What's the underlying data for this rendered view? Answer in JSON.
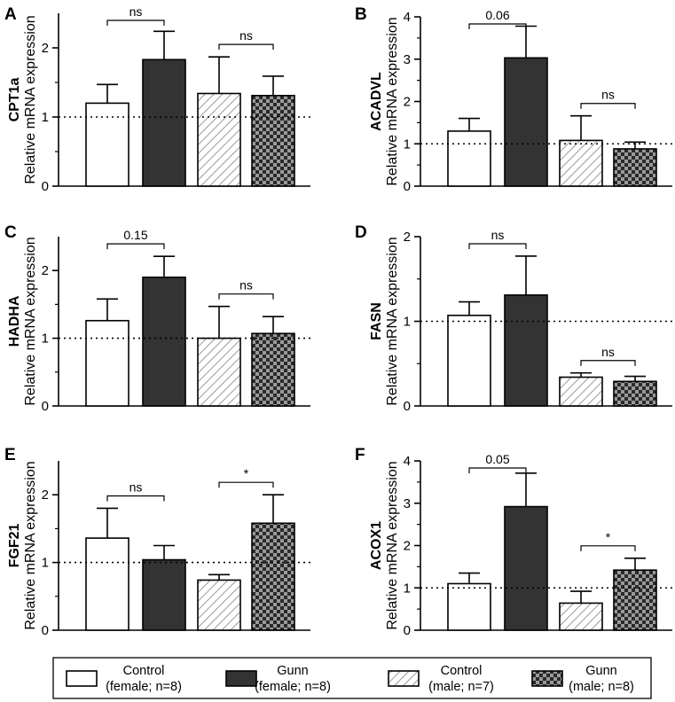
{
  "colors": {
    "control_female": "#ffffff",
    "gunn_female": "#333333",
    "control_male_hatch": "#9a9a9a",
    "gunn_male_check_dark": "#2a2a2a",
    "gunn_male_check_light": "#9a9a9a",
    "axis": "#000000"
  },
  "legend": {
    "items": [
      {
        "line1": "Control",
        "line2": "(female; n=8)",
        "pattern": "white"
      },
      {
        "line1": "Gunn",
        "line2": "(female; n=8)",
        "pattern": "dark"
      },
      {
        "line1": "Control",
        "line2": "(male; n=7)",
        "pattern": "hatch"
      },
      {
        "line1": "Gunn",
        "line2": "(male; n=8)",
        "pattern": "check"
      }
    ]
  },
  "chart_data": [
    {
      "panel": "A",
      "type": "bar",
      "gene": "CPT1a",
      "ylabel": "Relative  mRNA expression",
      "categories": [
        "Control (female; n=8)",
        "Gunn (female; n=8)",
        "Control (male; n=7)",
        "Gunn (male; n=8)"
      ],
      "values": [
        1.2,
        1.83,
        1.34,
        1.31
      ],
      "errors": [
        0.27,
        0.41,
        0.53,
        0.28
      ],
      "ylim": [
        0,
        2.5
      ],
      "yticks": [
        0,
        1,
        2
      ],
      "reference_line": 1,
      "comparisons": [
        {
          "from": 0,
          "to": 1,
          "label": "ns"
        },
        {
          "from": 2,
          "to": 3,
          "label": "ns"
        }
      ]
    },
    {
      "panel": "B",
      "type": "bar",
      "gene": "ACADVL",
      "ylabel": "Relative  mRNA expression",
      "categories": [
        "Control (female; n=8)",
        "Gunn (female; n=8)",
        "Control (male; n=7)",
        "Gunn (male; n=8)"
      ],
      "values": [
        1.3,
        3.03,
        1.08,
        0.88
      ],
      "errors": [
        0.3,
        0.75,
        0.58,
        0.16
      ],
      "ylim": [
        0,
        4
      ],
      "yticks": [
        0,
        1,
        2,
        3,
        4
      ],
      "reference_line": 1,
      "comparisons": [
        {
          "from": 0,
          "to": 1,
          "label": "0.06"
        },
        {
          "from": 2,
          "to": 3,
          "label": "ns"
        }
      ]
    },
    {
      "panel": "C",
      "type": "bar",
      "gene": "HADHA",
      "ylabel": "Relative mRNA expression",
      "categories": [
        "Control (female; n=8)",
        "Gunn (female; n=8)",
        "Control (male; n=7)",
        "Gunn (male; n=8)"
      ],
      "values": [
        1.26,
        1.9,
        1.0,
        1.07
      ],
      "errors": [
        0.32,
        0.31,
        0.47,
        0.25
      ],
      "ylim": [
        0,
        2.5
      ],
      "yticks": [
        0,
        1,
        2
      ],
      "reference_line": 1,
      "comparisons": [
        {
          "from": 0,
          "to": 1,
          "label": "0.15"
        },
        {
          "from": 2,
          "to": 3,
          "label": "ns"
        }
      ]
    },
    {
      "panel": "D",
      "type": "bar",
      "gene": "FASN",
      "ylabel": "Relative mRNA expression",
      "categories": [
        "Control (female; n=8)",
        "Gunn (female; n=8)",
        "Control (male; n=7)",
        "Gunn (male; n=8)"
      ],
      "values": [
        1.07,
        1.31,
        0.34,
        0.29
      ],
      "errors": [
        0.16,
        0.46,
        0.05,
        0.06
      ],
      "ylim": [
        0,
        2
      ],
      "yticks": [
        0,
        1,
        2
      ],
      "reference_line": 1,
      "comparisons": [
        {
          "from": 0,
          "to": 1,
          "label": "ns"
        },
        {
          "from": 2,
          "to": 3,
          "label": "ns"
        }
      ]
    },
    {
      "panel": "E",
      "type": "bar",
      "gene": "FGF21",
      "ylabel": "Relative  mRNA expression",
      "categories": [
        "Control (female; n=8)",
        "Gunn (female; n=8)",
        "Control (male; n=7)",
        "Gunn (male; n=8)"
      ],
      "values": [
        1.36,
        1.04,
        0.74,
        1.58
      ],
      "errors": [
        0.44,
        0.21,
        0.08,
        0.42
      ],
      "ylim": [
        0,
        2.5
      ],
      "yticks": [
        0,
        1,
        2
      ],
      "reference_line": 1,
      "comparisons": [
        {
          "from": 0,
          "to": 1,
          "label": "ns"
        },
        {
          "from": 2,
          "to": 3,
          "label": "*"
        }
      ]
    },
    {
      "panel": "F",
      "type": "bar",
      "gene": "ACOX1",
      "ylabel": "Relative mRNA expression",
      "categories": [
        "Control (female; n=8)",
        "Gunn (female; n=8)",
        "Control (male; n=7)",
        "Gunn (male; n=8)"
      ],
      "values": [
        1.1,
        2.92,
        0.64,
        1.42
      ],
      "errors": [
        0.25,
        0.79,
        0.28,
        0.28
      ],
      "ylim": [
        0,
        4
      ],
      "yticks": [
        0,
        1,
        2,
        3,
        4
      ],
      "reference_line": 1,
      "comparisons": [
        {
          "from": 0,
          "to": 1,
          "label": "0.05"
        },
        {
          "from": 2,
          "to": 3,
          "label": "*"
        }
      ]
    }
  ]
}
